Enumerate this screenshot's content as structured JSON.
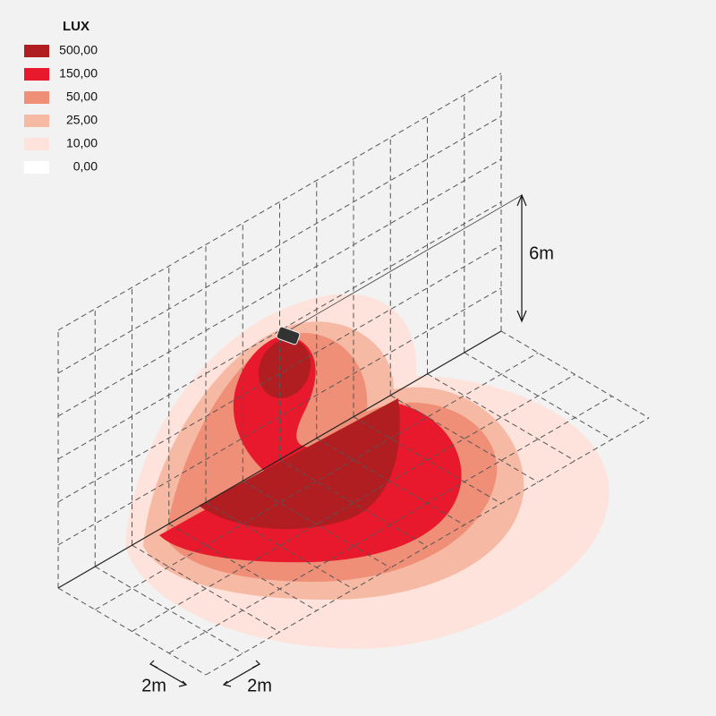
{
  "legend": {
    "title": "LUX",
    "items": [
      {
        "label": "500,00",
        "color": "#b11e22"
      },
      {
        "label": "150,00",
        "color": "#e8192c"
      },
      {
        "label": "50,00",
        "color": "#ef8f78"
      },
      {
        "label": "25,00",
        "color": "#f6b9a4"
      },
      {
        "label": "10,00",
        "color": "#fde3dc"
      },
      {
        "label": "0,00",
        "color": "#ffffff"
      }
    ]
  },
  "dimensions": {
    "height": "6m",
    "width": "2m",
    "depth": "2m"
  }
}
